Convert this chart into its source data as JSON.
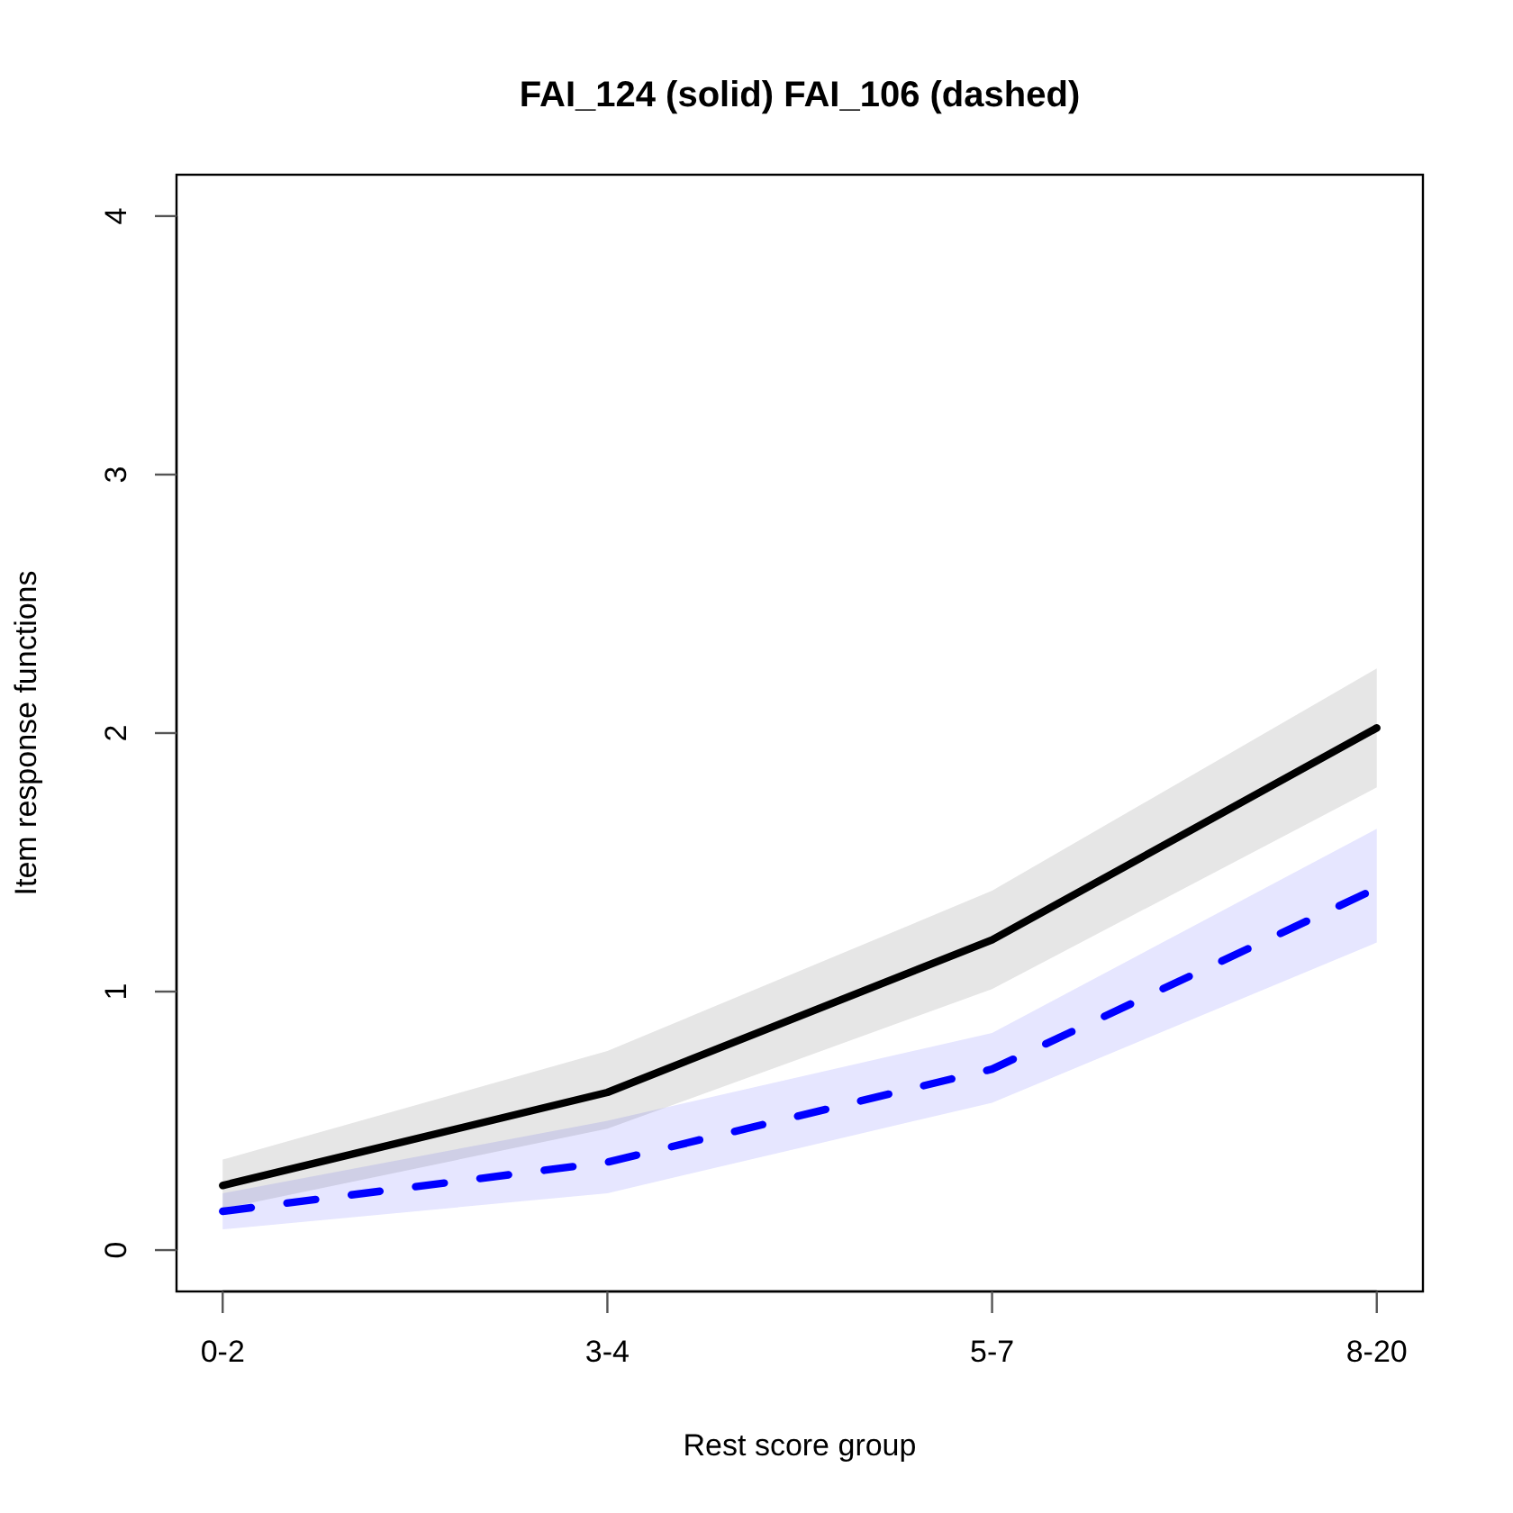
{
  "chart_data": {
    "type": "line",
    "title": "FAI_124 (solid) FAI_106 (dashed)",
    "xlabel": "Rest score group",
    "ylabel": "Item response functions",
    "categories": [
      "0-2",
      "3-4",
      "5-7",
      "8-20"
    ],
    "ylim": [
      -0.16,
      4.16
    ],
    "yticks": [
      0,
      1,
      2,
      3,
      4
    ],
    "series": [
      {
        "color": "#000000",
        "line_style": "solid",
        "values": [
          0.25,
          0.61,
          1.2,
          2.02
        ],
        "lower": [
          0.16,
          0.47,
          1.01,
          1.79
        ],
        "upper": [
          0.35,
          0.77,
          1.39,
          2.25
        ]
      },
      {
        "color": "#0000ff",
        "line_style": "dashed",
        "values": [
          0.15,
          0.34,
          0.7,
          1.4
        ],
        "lower": [
          0.08,
          0.22,
          0.57,
          1.19
        ],
        "upper": [
          0.22,
          0.5,
          0.84,
          1.63
        ]
      }
    ]
  }
}
